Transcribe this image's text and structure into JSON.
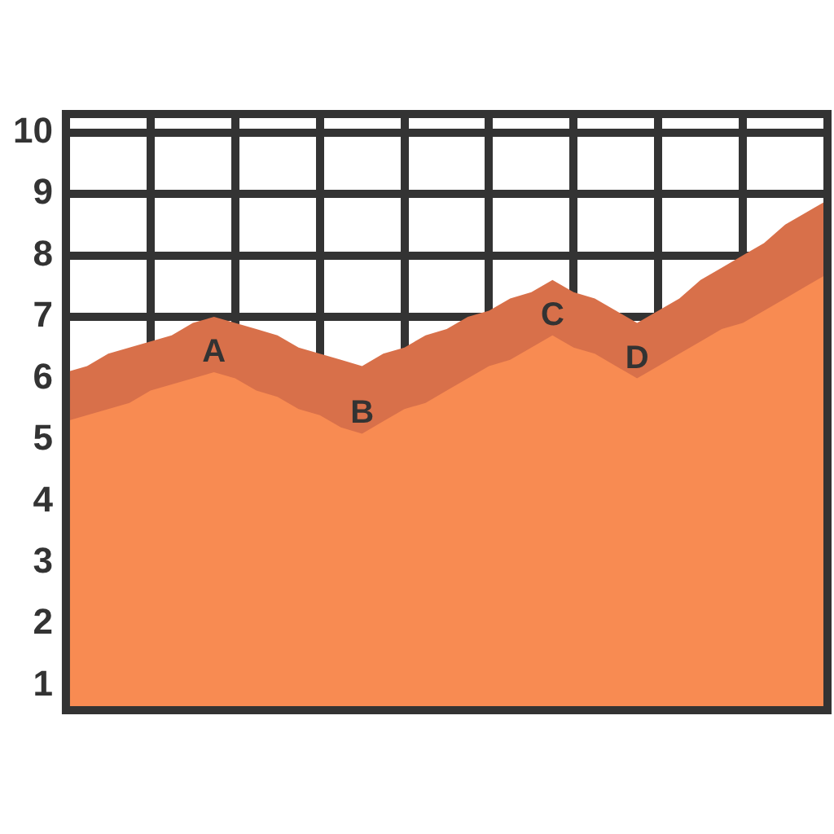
{
  "chart_data": {
    "type": "area",
    "categories": [
      null,
      null,
      null,
      null,
      null,
      null,
      null,
      null,
      null,
      null,
      null,
      null,
      null,
      null,
      null,
      null,
      null,
      null,
      null,
      null,
      null,
      null,
      null,
      null,
      null,
      null,
      null,
      null,
      null,
      null,
      null,
      null,
      null,
      null,
      null,
      null,
      null
    ],
    "ylim": [
      0.6,
      10.3
    ],
    "yticks": [
      1,
      2,
      3,
      4,
      5,
      6,
      7,
      8,
      9,
      10
    ],
    "tick_labels": "y",
    "grid": true,
    "legend": false,
    "series": [
      {
        "color": "#d8704a",
        "values": [
          6.1,
          6.2,
          6.4,
          6.5,
          6.6,
          6.7,
          6.9,
          7.0,
          6.9,
          6.8,
          6.7,
          6.5,
          6.4,
          6.3,
          6.2,
          6.4,
          6.5,
          6.7,
          6.8,
          7.0,
          7.1,
          7.3,
          7.4,
          7.6,
          7.4,
          7.3,
          7.1,
          6.9,
          7.1,
          7.3,
          7.6,
          7.8,
          8.0,
          8.2,
          8.5,
          8.7,
          8.9
        ]
      },
      {
        "color": "#f88b52",
        "values": [
          5.3,
          5.4,
          5.5,
          5.6,
          5.8,
          5.9,
          6.0,
          6.1,
          6.0,
          5.8,
          5.7,
          5.5,
          5.4,
          5.2,
          5.1,
          5.3,
          5.5,
          5.6,
          5.8,
          6.0,
          6.2,
          6.3,
          6.5,
          6.7,
          6.5,
          6.4,
          6.2,
          6.0,
          6.2,
          6.4,
          6.6,
          6.8,
          6.9,
          7.1,
          7.3,
          7.5,
          7.7
        ],
        "value_labels": [
          null,
          null,
          null,
          null,
          null,
          null,
          null,
          "A",
          null,
          null,
          null,
          null,
          null,
          null,
          "B",
          null,
          null,
          null,
          null,
          null,
          null,
          null,
          null,
          "C",
          null,
          null,
          null,
          "D",
          null,
          null,
          null,
          null,
          null,
          null,
          null,
          null,
          null
        ]
      }
    ]
  }
}
